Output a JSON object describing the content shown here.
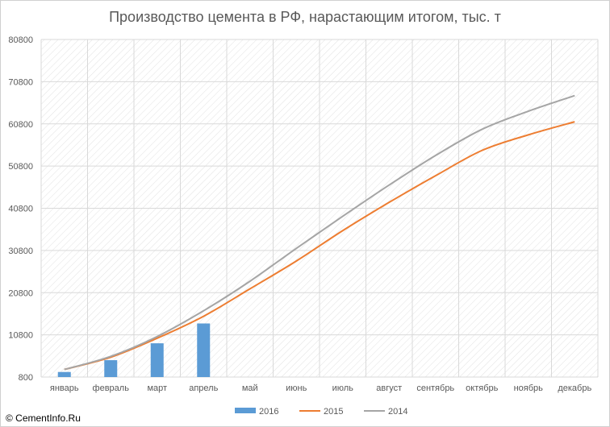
{
  "chart_data": {
    "type": "bar+line",
    "title": "Производство цемента в РФ, нарастающим итогом, тыс. т",
    "categories": [
      "январь",
      "февраль",
      "март",
      "апрель",
      "май",
      "июнь",
      "июль",
      "август",
      "сентябрь",
      "октябрь",
      "ноябрь",
      "декабрь"
    ],
    "yticks": [
      "800",
      "10800",
      "20800",
      "30800",
      "40800",
      "50800",
      "60800",
      "70800",
      "80800"
    ],
    "ylim": [
      800,
      80800
    ],
    "grid": true,
    "legend_position": "bottom",
    "series": [
      {
        "name": "2016",
        "kind": "bar",
        "color": "#5b9bd5",
        "values": [
          2000,
          4800,
          8800,
          13500,
          null,
          null,
          null,
          null,
          null,
          null,
          null,
          null
        ]
      },
      {
        "name": "2015",
        "kind": "line",
        "color": "#ed7d31",
        "values": [
          2600,
          5500,
          10000,
          15200,
          21700,
          28300,
          35500,
          42200,
          48500,
          54500,
          58200,
          61300
        ]
      },
      {
        "name": "2014",
        "kind": "line",
        "color": "#a5a5a5",
        "values": [
          2600,
          5700,
          10400,
          16500,
          23500,
          31300,
          38900,
          46300,
          53300,
          59500,
          63800,
          67500
        ]
      }
    ]
  },
  "footer": {
    "credit": "© CementInfo.Ru"
  }
}
